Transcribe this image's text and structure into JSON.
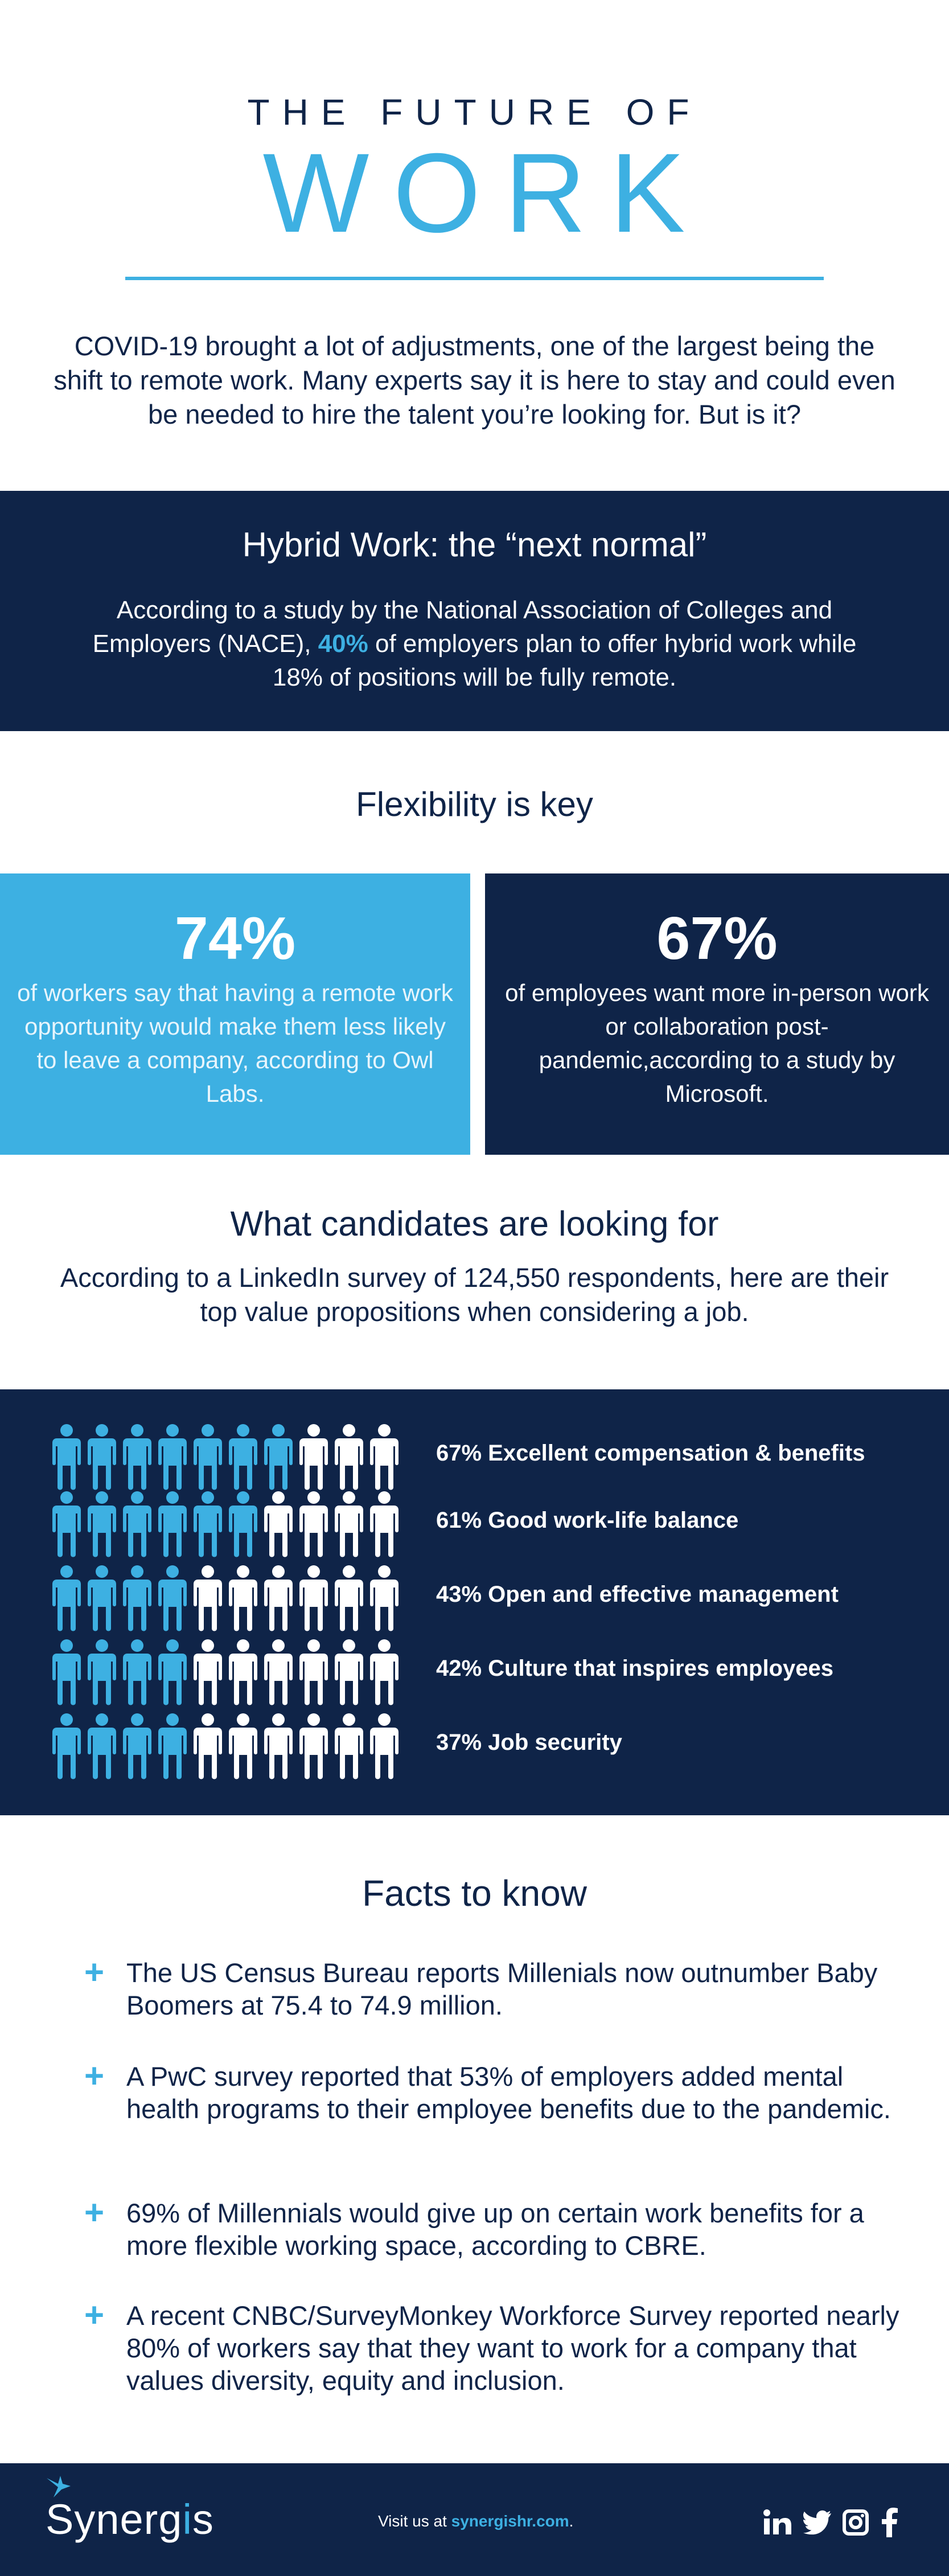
{
  "header": {
    "pre_title": "THE FUTURE OF",
    "title": "WORK",
    "intro": "COVID-19 brought a lot of adjustments, one of the largest being the shift to remote work. Many experts say it is here to stay and could even be needed to hire the talent you’re looking for. But is it?"
  },
  "hybrid": {
    "title": "Hybrid Work: the “next normal”",
    "text_before": "According to a study by the National Association of Colleges and Employers (NACE), ",
    "highlight": "40%",
    "text_after": " of employers plan to offer hybrid work while 18% of positions will be fully remote."
  },
  "flexibility": {
    "title": "Flexibility is key",
    "left": {
      "value": "74%",
      "text": "of workers say that having a remote work opportunity would make them less likely to leave a company, according to Owl Labs."
    },
    "right": {
      "value": "67%",
      "text": "of employees want more in-person work or collaboration post-pandemic,according to a study by Microsoft."
    }
  },
  "candidates": {
    "title": "What candidates are looking for",
    "text": "According to a LinkedIn survey of 124,550 respondents, here are their top value propositions when considering a job."
  },
  "people_chart": {
    "icons_per_row": 10,
    "filled_color": "#3db0e2",
    "empty_color": "#ffffff",
    "rows": [
      {
        "filled": 7,
        "label": "67% Excellent compensation & benefits"
      },
      {
        "filled": 6,
        "label": "61% Good work-life balance"
      },
      {
        "filled": 4,
        "label": "43% Open and effective management"
      },
      {
        "filled": 4,
        "label": "42% Culture that inspires employees"
      },
      {
        "filled": 4,
        "label": "37% Job security"
      }
    ]
  },
  "facts": {
    "title": "Facts to know",
    "plus_symbol": "+",
    "items": [
      "The US Census Bureau reports Millenials now outnumber Baby Boomers at 75.4 to 74.9 million.",
      "A PwC survey reported that 53% of employers added mental health programs to their employee benefits due to the pandemic.",
      "69% of Millennials would give up on certain work benefits for a more flexible working space, according to CBRE.",
      "A recent CNBC/SurveyMonkey Workforce Survey reported nearly 80% of workers say that they want to work for a company that values diversity, equity and inclusion."
    ]
  },
  "footer": {
    "logo_prefix": "Synerg",
    "logo_accent": "i",
    "logo_suffix": "s",
    "visit_text": "Visit us at ",
    "visit_link": "synergishr.com",
    "visit_end": ".",
    "social_icons": [
      "linkedin-icon",
      "twitter-icon",
      "instagram-icon",
      "facebook-icon"
    ]
  },
  "colors": {
    "navy": "#0f2448",
    "sky": "#3db0e2"
  }
}
